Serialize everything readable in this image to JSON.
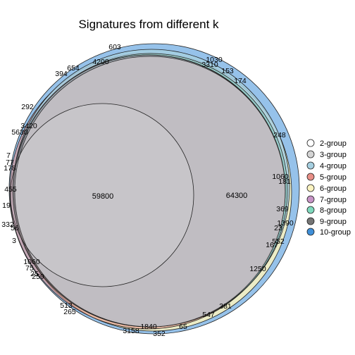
{
  "title": "Signatures from different k",
  "legend": [
    {
      "label": "2-group",
      "color": "#ffffff"
    },
    {
      "label": "3-group",
      "color": "#d4d4d4"
    },
    {
      "label": "4-group",
      "color": "#a6cfe0"
    },
    {
      "label": "5-group",
      "color": "#e88f87"
    },
    {
      "label": "6-group",
      "color": "#fbf3c0"
    },
    {
      "label": "7-group",
      "color": "#c794c6"
    },
    {
      "label": "8-group",
      "color": "#7fd9bd"
    },
    {
      "label": "9-group",
      "color": "#757575"
    },
    {
      "label": "10-group",
      "color": "#3f8fd8"
    }
  ],
  "labels": [
    "603",
    "4200",
    "654",
    "394",
    "1030",
    "3310",
    "153",
    "174",
    "292",
    "3420",
    "5630",
    "248",
    "7",
    "77",
    "178",
    "1060",
    "455",
    "181",
    "369",
    "19",
    "1390",
    "332",
    "56",
    "23",
    "552",
    "3",
    "167",
    "1060",
    "75",
    "1250",
    "25",
    "259",
    "381",
    "513",
    "265",
    "547",
    "1840",
    "65",
    "3158",
    "352"
  ],
  "big_labels": {
    "inner": "59800",
    "outer": "64300"
  }
}
